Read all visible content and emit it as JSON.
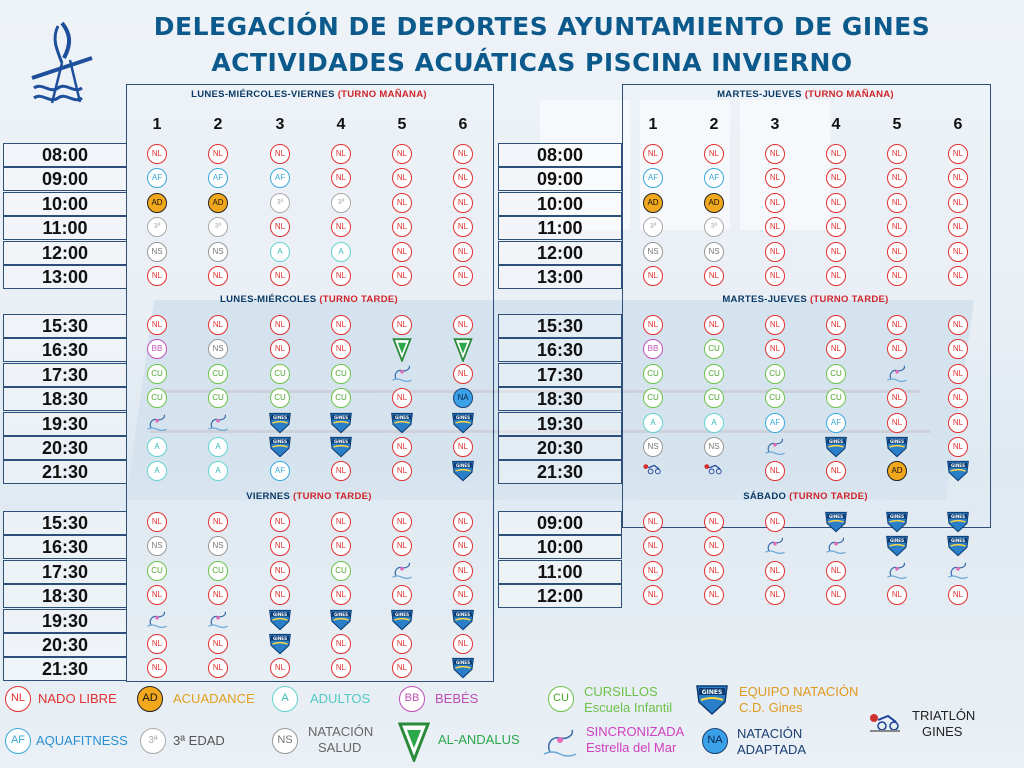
{
  "header": {
    "title_line1": "DELEGACIÓN DE DEPORTES AYUNTAMIENTO DE GINES",
    "title_line2": "ACTIVIDADES ACUÁTICAS   PISCINA INVIERNO"
  },
  "lanes": [
    "1",
    "2",
    "3",
    "4",
    "5",
    "6"
  ],
  "left": {
    "morning_title": "LUNES-MIÉRCOLES-VIERNES",
    "morning_turno": "(TURNO MAÑANA)",
    "afternoon_title": "LUNES-MIÉRCOLES",
    "afternoon_turno": "(TURNO TARDE)",
    "friday_title": "VIERNES",
    "friday_turno": "(TURNO TARDE)"
  },
  "right": {
    "morning_title": "MARTES-JUEVES",
    "morning_turno": "(TURNO MAÑANA)",
    "afternoon_title": "MARTES-JUEVES",
    "afternoon_turno": "(TURNO TARDE)",
    "saturday_title": "SÁBADO",
    "saturday_turno": "(TURNO TARDE)"
  },
  "schedule": {
    "left_morning": [
      {
        "time": "08:00",
        "cells": [
          "NL",
          "NL",
          "NL",
          "NL",
          "NL",
          "NL"
        ]
      },
      {
        "time": "09:00",
        "cells": [
          "AF",
          "AF",
          "AF",
          "NL",
          "NL",
          "NL"
        ]
      },
      {
        "time": "10:00",
        "cells": [
          "AD",
          "AD",
          "3ª",
          "3ª",
          "NL",
          "NL"
        ]
      },
      {
        "time": "11:00",
        "cells": [
          "3ª",
          "3ª",
          "NL",
          "NL",
          "NL",
          "NL"
        ]
      },
      {
        "time": "12:00",
        "cells": [
          "NS",
          "NS",
          "A",
          "A",
          "NL",
          "NL"
        ]
      },
      {
        "time": "13:00",
        "cells": [
          "NL",
          "NL",
          "NL",
          "NL",
          "NL",
          "NL"
        ]
      }
    ],
    "left_afternoon": [
      {
        "time": "15:30",
        "cells": [
          "NL",
          "NL",
          "NL",
          "NL",
          "NL",
          "NL"
        ]
      },
      {
        "time": "16:30",
        "cells": [
          "BB",
          "NS",
          "NL",
          "NL",
          "AA",
          "AA"
        ]
      },
      {
        "time": "17:30",
        "cells": [
          "CU",
          "CU",
          "CU",
          "CU",
          "SE",
          "NL"
        ]
      },
      {
        "time": "18:30",
        "cells": [
          "CU",
          "CU",
          "CU",
          "CU",
          "NL",
          "NA"
        ]
      },
      {
        "time": "19:30",
        "cells": [
          "SE",
          "SE",
          "GI",
          "GI",
          "GI",
          "GI"
        ]
      },
      {
        "time": "20:30",
        "cells": [
          "A",
          "A",
          "GI",
          "GI",
          "NL",
          "NL"
        ]
      },
      {
        "time": "21:30",
        "cells": [
          "A",
          "A",
          "AF",
          "NL",
          "NL",
          "GI"
        ]
      }
    ],
    "left_friday": [
      {
        "time": "15:30",
        "cells": [
          "NL",
          "NL",
          "NL",
          "NL",
          "NL",
          "NL"
        ]
      },
      {
        "time": "16:30",
        "cells": [
          "NS",
          "NS",
          "NL",
          "NL",
          "NL",
          "NL"
        ]
      },
      {
        "time": "17:30",
        "cells": [
          "CU",
          "CU",
          "NL",
          "CU",
          "SE",
          "NL"
        ]
      },
      {
        "time": "18:30",
        "cells": [
          "NL",
          "NL",
          "NL",
          "NL",
          "NL",
          "NL"
        ]
      },
      {
        "time": "19:30",
        "cells": [
          "SE",
          "SE",
          "GI",
          "GI",
          "GI",
          "GI"
        ]
      },
      {
        "time": "20:30",
        "cells": [
          "NL",
          "NL",
          "GI",
          "NL",
          "NL",
          "NL"
        ]
      },
      {
        "time": "21:30",
        "cells": [
          "NL",
          "NL",
          "NL",
          "NL",
          "NL",
          "GI"
        ]
      }
    ],
    "right_morning": [
      {
        "time": "08:00",
        "cells": [
          "NL",
          "NL",
          "NL",
          "NL",
          "NL",
          "NL"
        ]
      },
      {
        "time": "09:00",
        "cells": [
          "AF",
          "AF",
          "NL",
          "NL",
          "NL",
          "NL"
        ]
      },
      {
        "time": "10:00",
        "cells": [
          "AD",
          "AD",
          "NL",
          "NL",
          "NL",
          "NL"
        ]
      },
      {
        "time": "11:00",
        "cells": [
          "3ª",
          "3ª",
          "NL",
          "NL",
          "NL",
          "NL"
        ]
      },
      {
        "time": "12:00",
        "cells": [
          "NS",
          "NS",
          "NL",
          "NL",
          "NL",
          "NL"
        ]
      },
      {
        "time": "13:00",
        "cells": [
          "NL",
          "NL",
          "NL",
          "NL",
          "NL",
          "NL"
        ]
      }
    ],
    "right_afternoon": [
      {
        "time": "15:30",
        "cells": [
          "NL",
          "NL",
          "NL",
          "NL",
          "NL",
          "NL"
        ]
      },
      {
        "time": "16:30",
        "cells": [
          "BB",
          "CU",
          "NL",
          "NL",
          "NL",
          "NL"
        ]
      },
      {
        "time": "17:30",
        "cells": [
          "CU",
          "CU",
          "CU",
          "CU",
          "SE",
          "NL"
        ]
      },
      {
        "time": "18:30",
        "cells": [
          "CU",
          "CU",
          "CU",
          "CU",
          "NL",
          "NL"
        ]
      },
      {
        "time": "19:30",
        "cells": [
          "A",
          "A",
          "AF",
          "AF",
          "NL",
          "NL"
        ]
      },
      {
        "time": "20:30",
        "cells": [
          "NS",
          "NS",
          "SE",
          "GI",
          "GI",
          "NL"
        ]
      },
      {
        "time": "21:30",
        "cells": [
          "TR",
          "TR",
          "NL",
          "NL",
          "AD",
          "GI"
        ]
      }
    ],
    "right_saturday": [
      {
        "time": "09:00",
        "cells": [
          "NL",
          "NL",
          "NL",
          "GI",
          "GI",
          "GI"
        ]
      },
      {
        "time": "10:00",
        "cells": [
          "NL",
          "NL",
          "SE",
          "SE",
          "GI",
          "GI"
        ]
      },
      {
        "time": "11:00",
        "cells": [
          "NL",
          "NL",
          "NL",
          "NL",
          "SE",
          "SE"
        ]
      },
      {
        "time": "12:00",
        "cells": [
          "NL",
          "NL",
          "NL",
          "NL",
          "NL",
          "NL"
        ]
      }
    ]
  },
  "legend": {
    "nl": {
      "code": "NL",
      "label": "NADO LIBRE",
      "color": "#e03030"
    },
    "ad": {
      "code": "AD",
      "label": "ACUADANCE",
      "color": "#e0a020"
    },
    "a": {
      "code": "A",
      "label": "ADULTOS",
      "color": "#52c9c6"
    },
    "bb": {
      "code": "BB",
      "label": "BEBÉS",
      "color": "#c04fb6"
    },
    "cu": {
      "code": "CU",
      "label1": "CURSILLOS",
      "label2": "Escuela Infantil",
      "color": "#6cc24a"
    },
    "gi": {
      "label1": "EQUIPO NATACIÓN",
      "label2": "C.D. Gines",
      "color": "#e09a20"
    },
    "tr": {
      "label1": "TRIATLÓN",
      "label2": "GINES",
      "color": "#222222"
    },
    "af": {
      "code": "AF",
      "label": "AQUAFITNESS",
      "color": "#2a8fd0"
    },
    "ed": {
      "code": "3ª",
      "label": "3ª EDAD",
      "color": "#777777"
    },
    "ns": {
      "code": "NS",
      "label1": "NATACIÓN",
      "label2": "SALUD",
      "color": "#666666"
    },
    "aa": {
      "label": "AL-ANDALUS",
      "color": "#2aa84a"
    },
    "se": {
      "label1": "SINCRONIZADA",
      "label2": "Estrella del Mar",
      "color": "#d040c0"
    },
    "na": {
      "code": "NA",
      "label1": "NATACIÓN",
      "label2": "ADAPTADA",
      "color": "#1a3f73"
    }
  },
  "icons": {
    "GI": "gines-team-badge-icon",
    "SE": "sincro-estrella-del-mar-icon",
    "AA": "al-andalus-pennant-icon",
    "TR": "triatlon-gines-icon"
  }
}
